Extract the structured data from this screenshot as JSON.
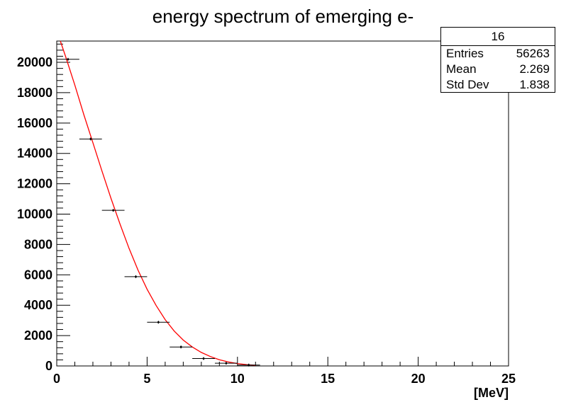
{
  "chart_data": {
    "type": "scatter",
    "title": "energy spectrum of emerging e-",
    "xlabel": "[MeV]",
    "ylabel": "",
    "xlim": [
      0,
      25
    ],
    "ylim": [
      0,
      21400
    ],
    "x_ticks": [
      0,
      5,
      10,
      15,
      20,
      25
    ],
    "y_ticks": [
      0,
      2000,
      4000,
      6000,
      8000,
      10000,
      12000,
      14000,
      16000,
      18000,
      20000
    ],
    "x_tick_labels": [
      "0",
      "5",
      "10",
      "15",
      "20",
      "25"
    ],
    "y_tick_labels": [
      "0",
      "2000",
      "4000",
      "6000",
      "8000",
      "10000",
      "12000",
      "14000",
      "16000",
      "18000",
      "20000"
    ],
    "grid": false,
    "colors": {
      "points": "#000000",
      "fit": "#ff0000"
    },
    "series": [
      {
        "kind": "histogram-points",
        "x": [
          0.625,
          1.875,
          3.125,
          4.375,
          5.625,
          6.875,
          8.125,
          9.375,
          10.625
        ],
        "xerr": 0.625,
        "values": [
          20200,
          14950,
          10250,
          5880,
          2880,
          1250,
          490,
          180,
          60
        ]
      },
      {
        "kind": "fit-curve",
        "x": [
          0.2,
          0.5,
          1.0,
          1.5,
          2.0,
          2.5,
          3.0,
          3.5,
          4.0,
          4.5,
          5.0,
          5.5,
          6.0,
          6.5,
          7.0,
          7.5,
          8.0,
          8.5,
          9.0,
          9.5,
          10.0,
          10.5,
          11.0
        ],
        "values": [
          21400,
          20350,
          18500,
          16550,
          14700,
          12850,
          11050,
          9350,
          7750,
          6300,
          5050,
          3980,
          3050,
          2300,
          1700,
          1250,
          890,
          620,
          410,
          260,
          160,
          90,
          40
        ]
      }
    ]
  },
  "stats_box": {
    "header": "16",
    "entries_label": "Entries",
    "entries_value": "56263",
    "mean_label": "Mean",
    "mean_value": "2.269",
    "stddev_label": "Std Dev",
    "stddev_value": "1.838"
  }
}
